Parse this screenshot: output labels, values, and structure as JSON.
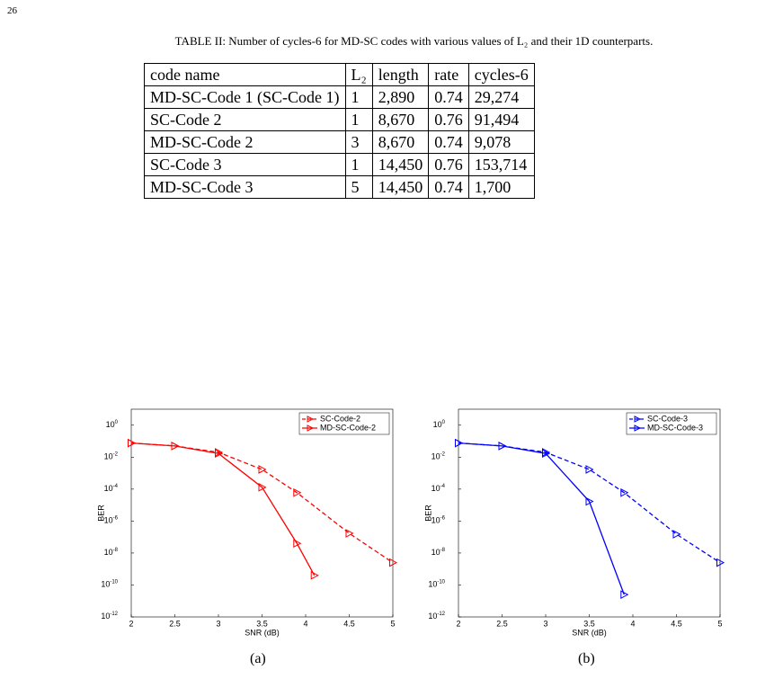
{
  "page_number": "26",
  "table": {
    "caption": "TABLE II: Number of cycles-6 for MD-SC codes with various values of L₂ and their 1D counterparts.",
    "header": [
      "code name",
      "L₂",
      "length",
      "rate",
      "cycles-6"
    ],
    "rows": [
      [
        "MD-SC-Code 1 (SC-Code 1)",
        "1",
        "2,890",
        "0.74",
        "29,274"
      ],
      [
        "SC-Code 2",
        "1",
        "8,670",
        "0.76",
        "91,494"
      ],
      [
        "MD-SC-Code 2",
        "3",
        "8,670",
        "0.74",
        "9,078"
      ],
      [
        "SC-Code 3",
        "1",
        "14,450",
        "0.76",
        "153,714"
      ],
      [
        "MD-SC-Code 3",
        "5",
        "14,450",
        "0.74",
        "1,700"
      ]
    ]
  },
  "chart_data": [
    {
      "type": "line",
      "caption": "(a)",
      "x_label": "SNR (dB)",
      "y_label": "BER",
      "y_log": true,
      "legend": "upper right",
      "xlim": [
        2,
        5
      ],
      "xticks": [
        2,
        2.5,
        3,
        3.5,
        4,
        4.5,
        5
      ],
      "ylim": [
        1e-12,
        10
      ],
      "yticks": [
        {
          "value": 1,
          "label": "10",
          "exponent": "0"
        },
        {
          "value": 0.01,
          "label": "10",
          "exponent": "-2"
        },
        {
          "value": 0.0001,
          "label": "10",
          "exponent": "-4"
        },
        {
          "value": 1e-06,
          "label": "10",
          "exponent": "-6"
        },
        {
          "value": 1e-08,
          "label": "10",
          "exponent": "-8"
        },
        {
          "value": 1e-10,
          "label": "10",
          "exponent": "-10"
        },
        {
          "value": 1e-12,
          "label": "10",
          "exponent": "-12"
        }
      ],
      "series": [
        {
          "name": "SC-Code-2",
          "color": "#ff0000",
          "dashed": true,
          "x": [
            2,
            2.5,
            3,
            3.5,
            3.9,
            4.5,
            5
          ],
          "values": [
            0.076,
            0.05,
            0.02,
            0.0017,
            6e-05,
            1.7e-07,
            2.5e-09
          ]
        },
        {
          "name": "MD-SC-Code-2",
          "color": "#ff0000",
          "dashed": false,
          "x": [
            2,
            2.5,
            3,
            3.5,
            3.9,
            4.1
          ],
          "values": [
            0.076,
            0.05,
            0.017,
            0.00013,
            4e-08,
            4e-10
          ]
        }
      ]
    },
    {
      "type": "line",
      "caption": "(b)",
      "x_label": "SNR (dB)",
      "y_label": "BER",
      "y_log": true,
      "legend": "upper right",
      "xlim": [
        2,
        5
      ],
      "xticks": [
        2,
        2.5,
        3,
        3.5,
        4,
        4.5,
        5
      ],
      "ylim": [
        1e-12,
        10
      ],
      "yticks": [
        {
          "value": 1,
          "label": "10",
          "exponent": "0"
        },
        {
          "value": 0.01,
          "label": "10",
          "exponent": "-2"
        },
        {
          "value": 0.0001,
          "label": "10",
          "exponent": "-4"
        },
        {
          "value": 1e-06,
          "label": "10",
          "exponent": "-6"
        },
        {
          "value": 1e-08,
          "label": "10",
          "exponent": "-8"
        },
        {
          "value": 1e-10,
          "label": "10",
          "exponent": "-10"
        },
        {
          "value": 1e-12,
          "label": "10",
          "exponent": "-12"
        }
      ],
      "series": [
        {
          "name": "SC-Code-3",
          "color": "#0000ff",
          "dashed": true,
          "x": [
            2,
            2.5,
            3,
            3.5,
            3.9,
            4.5,
            5
          ],
          "values": [
            0.076,
            0.05,
            0.02,
            0.0017,
            6e-05,
            1.5e-07,
            2.5e-09
          ]
        },
        {
          "name": "MD-SC-Code-3",
          "color": "#0000ff",
          "dashed": false,
          "x": [
            2,
            2.5,
            3,
            3.5,
            3.9
          ],
          "values": [
            0.076,
            0.05,
            0.017,
            1.7e-05,
            2.5e-11
          ]
        }
      ]
    }
  ]
}
